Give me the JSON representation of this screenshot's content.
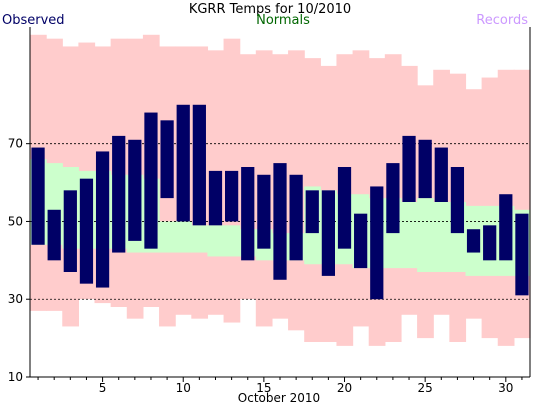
{
  "chart_data": {
    "type": "bar",
    "title": "KGRR Temps for 10/2010",
    "xlabel": "October 2010",
    "ylabel": "",
    "legend": {
      "observed": "Observed",
      "normals": "Normals",
      "records": "Records",
      "placement": "top"
    },
    "xlim": [
      0.5,
      31.5
    ],
    "ylim": [
      10,
      100
    ],
    "x_ticks": [
      5,
      10,
      15,
      20,
      25,
      30
    ],
    "y_ticks": [
      30,
      50,
      70
    ],
    "gridlines_y": [
      30,
      50,
      70
    ],
    "days": [
      1,
      2,
      3,
      4,
      5,
      6,
      7,
      8,
      9,
      10,
      11,
      12,
      13,
      14,
      15,
      16,
      17,
      18,
      19,
      20,
      21,
      22,
      23,
      24,
      25,
      26,
      27,
      28,
      29,
      30,
      31
    ],
    "series": [
      {
        "name": "Records",
        "role": "record_range",
        "color": "#ffcccc",
        "high": [
          98,
          97,
          95,
          96,
          95,
          97,
          97,
          98,
          95,
          95,
          95,
          94,
          97,
          93,
          94,
          93,
          94,
          92,
          90,
          93,
          94,
          92,
          93,
          90,
          85,
          89,
          88,
          84,
          87,
          89,
          89
        ],
        "low": [
          27,
          27,
          23,
          30,
          29,
          28,
          25,
          28,
          23,
          26,
          25,
          26,
          24,
          30,
          23,
          25,
          22,
          19,
          19,
          18,
          23,
          18,
          19,
          26,
          20,
          26,
          19,
          25,
          20,
          18,
          20
        ]
      },
      {
        "name": "Normals",
        "role": "normal_range",
        "color": "#ccffcc",
        "high": [
          66,
          65,
          64,
          63,
          63,
          62,
          62,
          61,
          50,
          50,
          49,
          49,
          49,
          48,
          48,
          47,
          47,
          59,
          58,
          57,
          57,
          56,
          56,
          55,
          56,
          55,
          55,
          54,
          54,
          54,
          53
        ],
        "low": [
          44,
          44,
          43,
          43,
          43,
          43,
          42,
          42,
          42,
          42,
          42,
          41,
          41,
          41,
          40,
          40,
          40,
          39,
          39,
          39,
          38,
          38,
          38,
          38,
          37,
          37,
          37,
          36,
          36,
          36,
          36
        ]
      },
      {
        "name": "Observed",
        "role": "observed_range",
        "color": "#000066",
        "high": [
          69,
          53,
          58,
          61,
          68,
          72,
          71,
          78,
          76,
          80,
          80,
          63,
          63,
          64,
          62,
          65,
          62,
          58,
          58,
          64,
          52,
          59,
          65,
          72,
          71,
          69,
          64,
          48,
          49,
          57,
          52
        ],
        "low": [
          44,
          40,
          37,
          34,
          33,
          42,
          45,
          43,
          56,
          50,
          49,
          49,
          50,
          40,
          43,
          35,
          40,
          47,
          36,
          43,
          38,
          30,
          47,
          55,
          56,
          55,
          47,
          42,
          40,
          40,
          31
        ]
      }
    ],
    "colors": {
      "observed": "#000066",
      "normals_text": "#006600",
      "records_text": "#cc99ff",
      "axis": "#000000",
      "grid": "#000000"
    }
  }
}
